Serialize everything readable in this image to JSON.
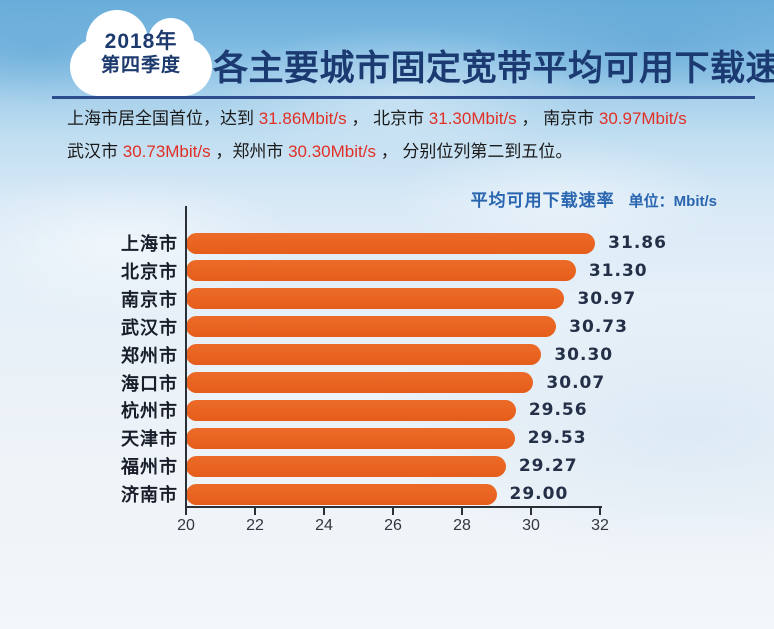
{
  "badge": {
    "line1": "2018年",
    "line2": "第四季度"
  },
  "header": {
    "title": "各主要城市固定宽带平均可用下载速率"
  },
  "intro": {
    "lines": [
      [
        {
          "t": "上海市居全国首位，达到 ",
          "c": "black"
        },
        {
          "t": "31.86Mbit/s",
          "c": "red"
        },
        {
          "t": " ，  北京市 ",
          "c": "black"
        },
        {
          "t": "31.30Mbit/s",
          "c": "red"
        },
        {
          "t": " ，  南京市 ",
          "c": "black"
        },
        {
          "t": "30.97Mbit/s",
          "c": "red"
        }
      ],
      [
        {
          "t": "武汉市 ",
          "c": "black"
        },
        {
          "t": "30.73Mbit/s",
          "c": "red"
        },
        {
          "t": " ，郑州市 ",
          "c": "black"
        },
        {
          "t": "30.30Mbit/s",
          "c": "red"
        },
        {
          "t": " ，  分别位列第二到五位。",
          "c": "black"
        }
      ]
    ]
  },
  "legend": {
    "label": "平均可用下载速率",
    "unit": "单位：Mbit/s"
  },
  "chart_data": {
    "type": "bar",
    "orientation": "horizontal",
    "title": "平均可用下载速率",
    "unit": "Mbit/s",
    "categories": [
      "上海市",
      "北京市",
      "南京市",
      "武汉市",
      "郑州市",
      "海口市",
      "杭州市",
      "天津市",
      "福州市",
      "济南市"
    ],
    "values": [
      31.86,
      31.3,
      30.97,
      30.73,
      30.3,
      30.07,
      29.56,
      29.53,
      29.27,
      29.0
    ],
    "value_labels": [
      "31.86",
      "31.30",
      "30.97",
      "30.73",
      "30.30",
      "30.07",
      "29.56",
      "29.53",
      "29.27",
      "29.00"
    ],
    "x_ticks": [
      20,
      22,
      24,
      26,
      28,
      30,
      32
    ],
    "xlim": [
      20,
      32
    ],
    "grid": false,
    "legend_position": "top-right",
    "bar_color": "#e8611f"
  },
  "colors": {
    "title_navy": "#1b3a71",
    "divider_blue": "#2c4c8e",
    "bar_orange": "#e8611f",
    "number_red": "#e03026",
    "legend_blue": "#2a66b0",
    "axis_dark": "#2b2f36",
    "sky_top": "#68add9",
    "sky_bottom": "#f3f6fa"
  }
}
